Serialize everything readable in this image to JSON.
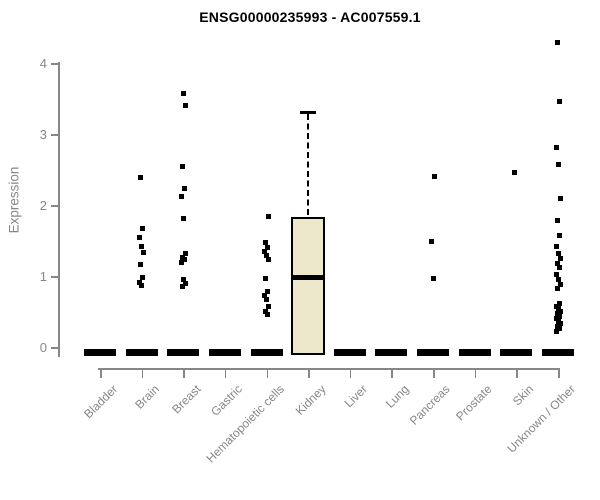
{
  "chart_data": {
    "type": "boxplot",
    "title": "ENSG00000235993 - AC007559.1",
    "xlabel": "",
    "ylabel": "Expression",
    "yticks": [
      0,
      1,
      2,
      3,
      4
    ],
    "ylim": [
      0,
      4.4
    ],
    "grid": false,
    "legend": "none",
    "categories": [
      "Bladder",
      "Brain",
      "Breast",
      "Gastric",
      "Hematopoietic cells",
      "Kidney",
      "Liver",
      "Lung",
      "Pancreas",
      "Prostate",
      "Skin",
      "Unknown / Other"
    ],
    "groups": [
      {
        "name": "Bladder",
        "box": {
          "q1": 0,
          "median": 0,
          "q3": 0,
          "whisker_low": 0,
          "whisker_high": 0
        },
        "points": []
      },
      {
        "name": "Brain",
        "box": {
          "q1": 0,
          "median": 0,
          "q3": 0,
          "whisker_low": 0,
          "whisker_high": 0
        },
        "points": [
          2.4,
          1.68,
          1.55,
          1.43,
          1.35,
          1.18,
          1.0,
          0.92,
          0.88
        ]
      },
      {
        "name": "Breast",
        "box": {
          "q1": 0,
          "median": 0,
          "q3": 0,
          "whisker_low": 0,
          "whisker_high": 0
        },
        "points": [
          3.58,
          3.42,
          2.56,
          2.25,
          2.13,
          1.82,
          1.33,
          1.28,
          1.24,
          1.2,
          0.96,
          0.91,
          0.86
        ]
      },
      {
        "name": "Gastric",
        "box": {
          "q1": 0,
          "median": 0,
          "q3": 0,
          "whisker_low": 0,
          "whisker_high": 0
        },
        "points": []
      },
      {
        "name": "Hematopoietic cells",
        "box": {
          "q1": 0,
          "median": 0,
          "q3": 0,
          "whisker_low": 0,
          "whisker_high": 0
        },
        "points": [
          1.85,
          1.48,
          1.42,
          1.36,
          1.3,
          1.24,
          0.98,
          0.8,
          0.74,
          0.69,
          0.58,
          0.52,
          0.47
        ]
      },
      {
        "name": "Kidney",
        "box": {
          "q1": 0,
          "median": 1.0,
          "q3": 1.85,
          "whisker_low": 0,
          "whisker_high": 3.32
        },
        "points": []
      },
      {
        "name": "Liver",
        "box": {
          "q1": 0,
          "median": 0,
          "q3": 0,
          "whisker_low": 0,
          "whisker_high": 0
        },
        "points": []
      },
      {
        "name": "Lung",
        "box": {
          "q1": 0,
          "median": 0,
          "q3": 0,
          "whisker_low": 0,
          "whisker_high": 0
        },
        "points": []
      },
      {
        "name": "Pancreas",
        "box": {
          "q1": 0,
          "median": 0,
          "q3": 0,
          "whisker_low": 0,
          "whisker_high": 0
        },
        "points": [
          2.42,
          1.5,
          0.98
        ]
      },
      {
        "name": "Prostate",
        "box": {
          "q1": 0,
          "median": 0,
          "q3": 0,
          "whisker_low": 0,
          "whisker_high": 0
        },
        "points": []
      },
      {
        "name": "Skin",
        "box": {
          "q1": 0,
          "median": 0,
          "q3": 0,
          "whisker_low": 0,
          "whisker_high": 0
        },
        "points": [
          2.47
        ]
      },
      {
        "name": "Unknown / Other",
        "box": {
          "q1": 0,
          "median": 0,
          "q3": 0,
          "whisker_low": 0,
          "whisker_high": 0
        },
        "points": [
          4.3,
          3.47,
          2.82,
          2.59,
          2.1,
          1.79,
          1.58,
          1.43,
          1.33,
          1.26,
          1.19,
          1.13,
          1.03,
          0.96,
          0.9,
          0.84,
          0.62,
          0.58,
          0.55,
          0.51,
          0.48,
          0.44,
          0.41,
          0.37,
          0.34,
          0.3,
          0.27,
          0.23
        ]
      }
    ],
    "colors": {
      "background": "#FFFFFF",
      "axis": "#878787",
      "box_fill": "#EDE7CC",
      "box_border": "#000000",
      "median": "#000000",
      "point": "#000000",
      "title": "#000000"
    }
  }
}
